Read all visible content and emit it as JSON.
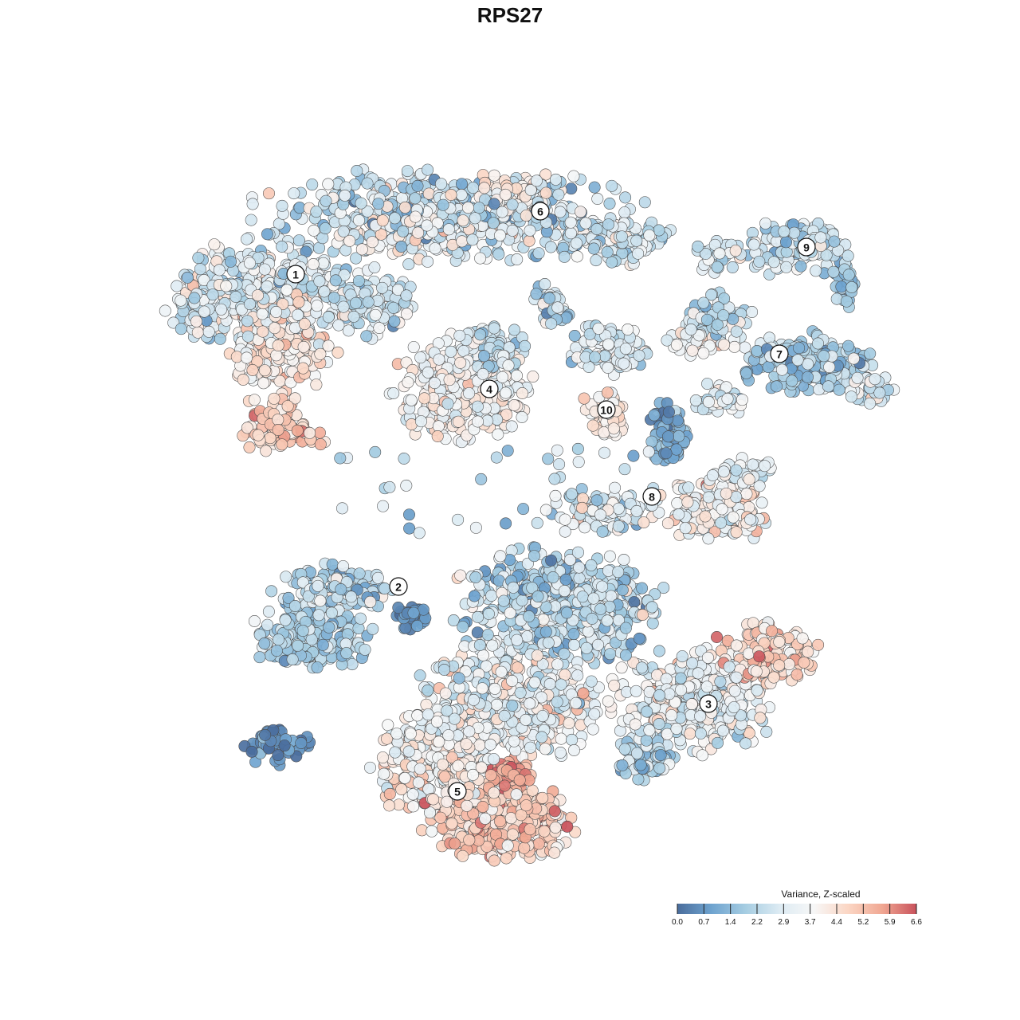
{
  "chart_data": {
    "type": "scatter",
    "title": "RPS27",
    "subtitle": "",
    "xlabel": "",
    "ylabel": "",
    "grid": false,
    "color_scale": {
      "title": "Variance, Z-scaled",
      "min": 0.0,
      "max": 6.6,
      "ticks": [
        "0.0",
        "0.7",
        "1.4",
        "2.2",
        "2.9",
        "3.7",
        "4.4",
        "5.2",
        "5.9",
        "6.6"
      ],
      "colors": [
        "#4a6d9c",
        "#6ea3cf",
        "#a6cde2",
        "#ddebf3",
        "#f7f7f7",
        "#fbd6c4",
        "#f0a792",
        "#c9525c"
      ],
      "legend_position": "bottom-right"
    },
    "clusters": [
      {
        "label": "1",
        "mean_value": 3.4
      },
      {
        "label": "2",
        "mean_value": 1.6
      },
      {
        "label": "3",
        "mean_value": 3.3
      },
      {
        "label": "4",
        "mean_value": 3.0
      },
      {
        "label": "5",
        "mean_value": 4.0
      },
      {
        "label": "6",
        "mean_value": 2.6
      },
      {
        "label": "7",
        "mean_value": 2.2
      },
      {
        "label": "8",
        "mean_value": 3.2
      },
      {
        "label": "9",
        "mean_value": 2.3
      },
      {
        "label": "10",
        "mean_value": 3.8
      }
    ]
  }
}
